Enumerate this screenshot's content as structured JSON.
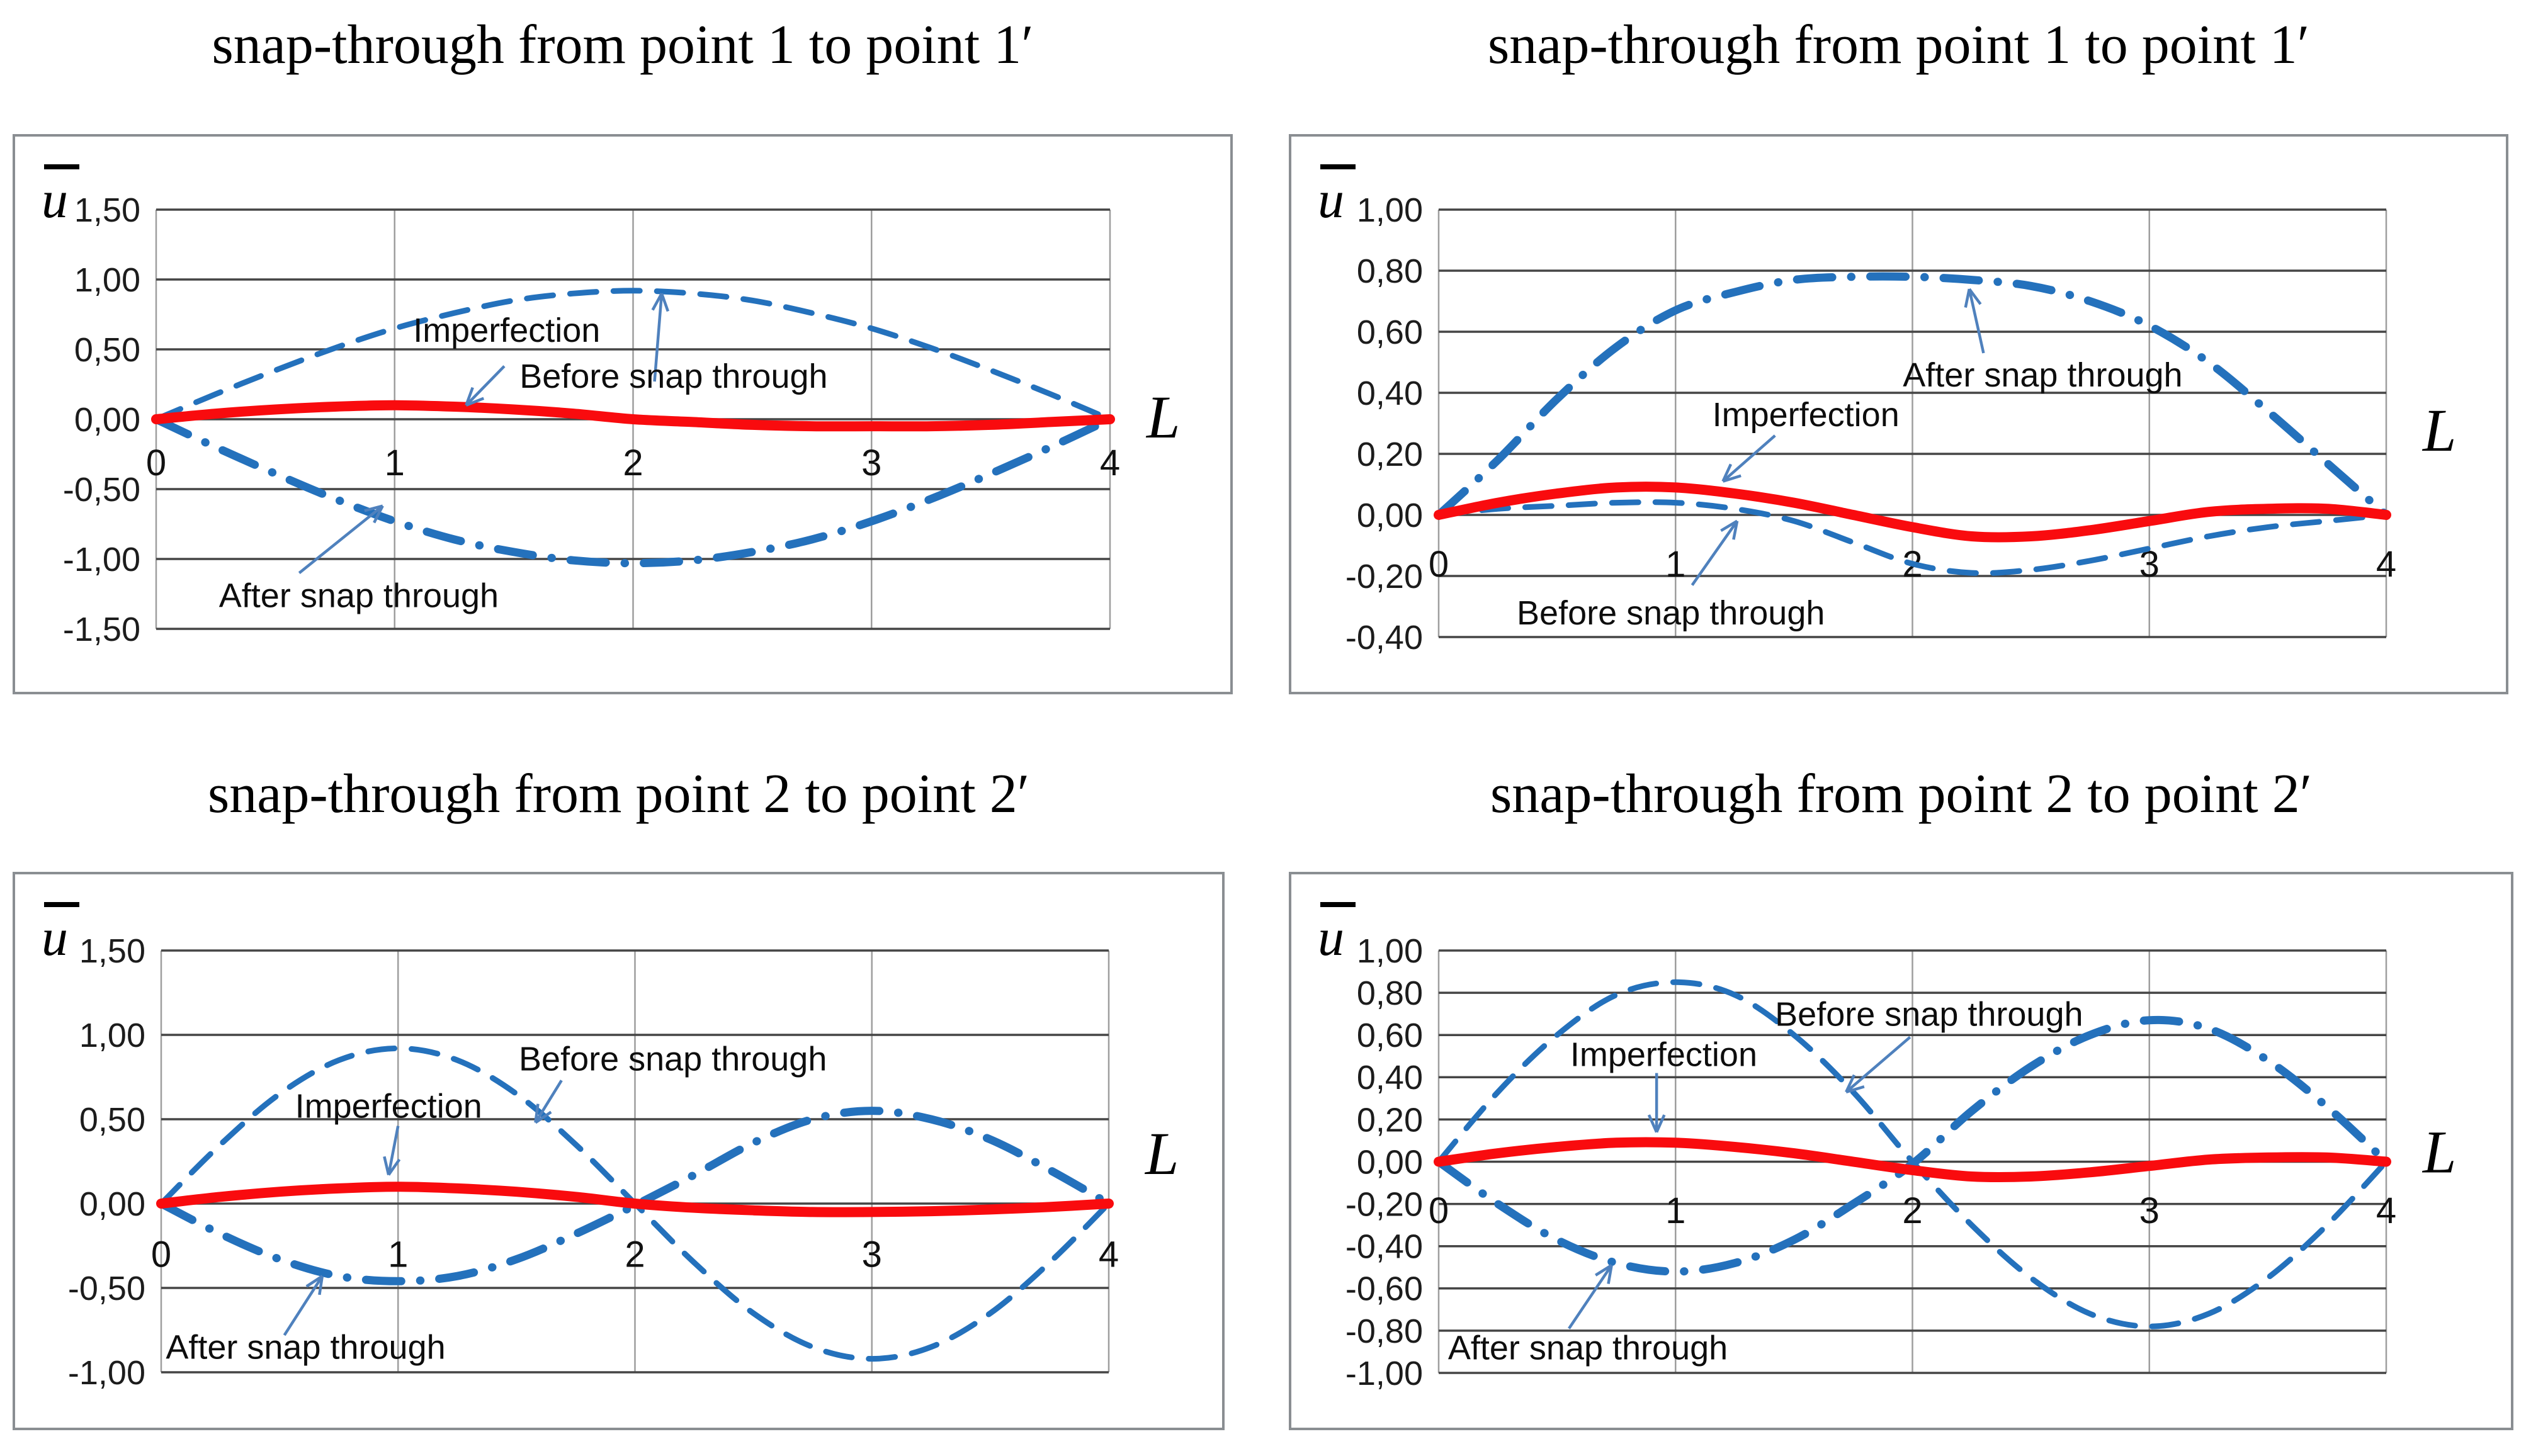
{
  "figure": {
    "background": "#ffffff",
    "curve_blue": "#2471BC",
    "curve_red": "#F90B0E",
    "arrow_blue": "#4F81BD",
    "grid_dark": "#454545",
    "grid_light": "#9e9e9e",
    "box_border": "#8a8e92"
  },
  "chart_data": [
    {
      "id": "c1",
      "type": "line",
      "title": "snap-through from point 1 to point 1′",
      "xlabel": "L",
      "ylabel": "u",
      "ylabel_overbar": true,
      "xlim": [
        0,
        4
      ],
      "ylim": [
        -1.5,
        1.5
      ],
      "grid": true,
      "legend_position": "none",
      "x_ticks": [
        {
          "label": "0",
          "v": 0
        },
        {
          "label": "1",
          "v": 1
        },
        {
          "label": "2",
          "v": 2
        },
        {
          "label": "3",
          "v": 3
        },
        {
          "label": "4",
          "v": 4
        }
      ],
      "y_ticks": [
        {
          "label": "1,50",
          "v": 1.5
        },
        {
          "label": "1,00",
          "v": 1.0
        },
        {
          "label": "0,50",
          "v": 0.5
        },
        {
          "label": "0,00",
          "v": 0.0
        },
        {
          "label": "-0,50",
          "v": -0.5
        },
        {
          "label": "-1,00",
          "v": -1.0
        },
        {
          "label": "-1,50",
          "v": -1.5
        }
      ],
      "x_tick_row_v": -0.31,
      "xlabel_v": 0.02,
      "x": [
        0,
        0.25,
        0.5,
        0.75,
        1,
        1.25,
        1.5,
        1.75,
        2,
        2.25,
        2.5,
        2.75,
        3,
        3.25,
        3.5,
        3.75,
        4
      ],
      "series": [
        {
          "name": "Before snap through",
          "style": "dashed",
          "color": "#2471BC",
          "values": [
            0,
            0.18,
            0.35,
            0.51,
            0.65,
            0.76,
            0.85,
            0.9,
            0.92,
            0.9,
            0.85,
            0.76,
            0.65,
            0.51,
            0.35,
            0.18,
            0
          ]
        },
        {
          "name": "After snap through",
          "style": "dashdot",
          "color": "#2471BC",
          "values": [
            0,
            -0.2,
            -0.39,
            -0.57,
            -0.73,
            -0.86,
            -0.95,
            -1.01,
            -1.03,
            -1.01,
            -0.95,
            -0.86,
            -0.73,
            -0.57,
            -0.39,
            -0.2,
            0
          ]
        },
        {
          "name": "Imperfection",
          "style": "solid",
          "color": "#F90B0E",
          "values": [
            0,
            0.04,
            0.07,
            0.09,
            0.1,
            0.09,
            0.07,
            0.04,
            0,
            -0.02,
            -0.04,
            -0.05,
            -0.05,
            -0.05,
            -0.04,
            -0.02,
            0
          ]
        }
      ],
      "annotations": [
        {
          "label": "Imperfection",
          "tx": 1.47,
          "ty": 0.64,
          "arrow": [
            1.46,
            0.38,
            1.3,
            0.1
          ]
        },
        {
          "label": "Before snap through",
          "tx": 2.17,
          "ty": 0.31,
          "arrow": [
            2.09,
            0.27,
            2.12,
            0.9
          ]
        },
        {
          "label": "After snap through",
          "tx": 0.85,
          "ty": -1.26,
          "arrow": [
            0.6,
            -1.1,
            0.95,
            -0.62
          ]
        }
      ]
    },
    {
      "id": "c2",
      "type": "line",
      "title": "snap-through from point 1 to point 1′",
      "xlabel": "L",
      "ylabel": "u",
      "ylabel_overbar": true,
      "xlim": [
        0,
        4
      ],
      "ylim": [
        -0.4,
        1.0
      ],
      "grid": true,
      "legend_position": "none",
      "x_ticks": [
        {
          "label": "0",
          "v": 0
        },
        {
          "label": "1",
          "v": 1
        },
        {
          "label": "2",
          "v": 2
        },
        {
          "label": "3",
          "v": 3
        },
        {
          "label": "4",
          "v": 4
        }
      ],
      "y_ticks": [
        {
          "label": "1,00",
          "v": 1.0
        },
        {
          "label": "0,80",
          "v": 0.8
        },
        {
          "label": "0,60",
          "v": 0.6
        },
        {
          "label": "0,40",
          "v": 0.4
        },
        {
          "label": "0,20",
          "v": 0.2
        },
        {
          "label": "0,00",
          "v": 0.0
        },
        {
          "label": "-0,20",
          "v": -0.2
        },
        {
          "label": "-0,40",
          "v": -0.4
        }
      ],
      "x_tick_row_v": -0.16,
      "xlabel_v": 0.28,
      "x": [
        0,
        0.25,
        0.5,
        0.75,
        1,
        1.25,
        1.5,
        1.75,
        2,
        2.25,
        2.5,
        2.75,
        3,
        3.25,
        3.5,
        3.75,
        4
      ],
      "series": [
        {
          "name": "After snap through",
          "style": "dashdot",
          "color": "#2471BC",
          "values": [
            0,
            0.18,
            0.38,
            0.55,
            0.67,
            0.73,
            0.77,
            0.78,
            0.78,
            0.77,
            0.75,
            0.7,
            0.62,
            0.5,
            0.34,
            0.17,
            0
          ]
        },
        {
          "name": "Before snap through",
          "style": "dashed",
          "color": "#2471BC",
          "values": [
            0,
            0.02,
            0.03,
            0.04,
            0.04,
            0.02,
            -0.02,
            -0.09,
            -0.16,
            -0.19,
            -0.18,
            -0.15,
            -0.11,
            -0.07,
            -0.04,
            -0.02,
            0
          ]
        },
        {
          "name": "Imperfection",
          "style": "solid",
          "color": "#F90B0E",
          "values": [
            0,
            0.04,
            0.07,
            0.09,
            0.09,
            0.07,
            0.04,
            0,
            -0.04,
            -0.07,
            -0.07,
            -0.05,
            -0.02,
            0.01,
            0.02,
            0.02,
            0
          ]
        }
      ],
      "annotations": [
        {
          "label": "After snap through",
          "tx": 2.55,
          "ty": 0.46,
          "arrow": [
            2.3,
            0.53,
            2.24,
            0.74
          ]
        },
        {
          "label": "Imperfection",
          "tx": 1.55,
          "ty": 0.33,
          "arrow": [
            1.42,
            0.26,
            1.2,
            0.11
          ]
        },
        {
          "label": "Before snap through",
          "tx": 0.98,
          "ty": -0.32,
          "arrow": [
            1.07,
            -0.23,
            1.26,
            -0.02
          ]
        }
      ]
    },
    {
      "id": "c3",
      "type": "line",
      "title": "snap-through from point 2 to point 2′",
      "xlabel": "L",
      "ylabel": "u",
      "ylabel_overbar": true,
      "xlim": [
        0,
        4
      ],
      "ylim": [
        -1.0,
        1.5
      ],
      "grid": true,
      "legend_position": "none",
      "x_ticks": [
        {
          "label": "0",
          "v": 0
        },
        {
          "label": "1",
          "v": 1
        },
        {
          "label": "2",
          "v": 2
        },
        {
          "label": "3",
          "v": 3
        },
        {
          "label": "4",
          "v": 4
        }
      ],
      "y_ticks": [
        {
          "label": "1,50",
          "v": 1.5
        },
        {
          "label": "1,00",
          "v": 1.0
        },
        {
          "label": "0,50",
          "v": 0.5
        },
        {
          "label": "0,00",
          "v": 0.0
        },
        {
          "label": "-0,50",
          "v": -0.5
        },
        {
          "label": "-1,00",
          "v": -1.0
        }
      ],
      "x_tick_row_v": -0.3,
      "xlabel_v": 0.3,
      "x": [
        0,
        0.25,
        0.5,
        0.75,
        1,
        1.25,
        1.5,
        1.75,
        2,
        2.25,
        2.5,
        2.75,
        3,
        3.25,
        3.5,
        3.75,
        4
      ],
      "series": [
        {
          "name": "Before snap through",
          "style": "dashed",
          "color": "#2471BC",
          "values": [
            0,
            0.35,
            0.65,
            0.85,
            0.92,
            0.85,
            0.65,
            0.35,
            0,
            -0.35,
            -0.65,
            -0.85,
            -0.92,
            -0.85,
            -0.65,
            -0.35,
            0
          ]
        },
        {
          "name": "After snap through",
          "style": "dashdot",
          "color": "#2471BC",
          "values": [
            0,
            -0.18,
            -0.33,
            -0.43,
            -0.46,
            -0.43,
            -0.33,
            -0.18,
            -0.01,
            0.17,
            0.36,
            0.5,
            0.55,
            0.5,
            0.38,
            0.2,
            0
          ]
        },
        {
          "name": "Imperfection",
          "style": "solid",
          "color": "#F90B0E",
          "values": [
            0,
            0.04,
            0.07,
            0.09,
            0.1,
            0.09,
            0.07,
            0.04,
            0,
            -0.025,
            -0.04,
            -0.05,
            -0.05,
            -0.045,
            -0.035,
            -0.02,
            0
          ]
        }
      ],
      "annotations": [
        {
          "label": "Before snap through",
          "tx": 2.16,
          "ty": 0.86,
          "arrow": [
            1.69,
            0.73,
            1.58,
            0.48
          ]
        },
        {
          "label": "Imperfection",
          "tx": 0.96,
          "ty": 0.58,
          "arrow": [
            1.0,
            0.46,
            0.96,
            0.17
          ]
        },
        {
          "label": "After snap through",
          "tx": 0.61,
          "ty": -0.85,
          "arrow": [
            0.52,
            -0.78,
            0.68,
            -0.43
          ]
        }
      ]
    },
    {
      "id": "c4",
      "type": "line",
      "title": "snap-through from point 2 to point 2′",
      "xlabel": "L",
      "ylabel": "u",
      "ylabel_overbar": true,
      "xlim": [
        0,
        4
      ],
      "ylim": [
        -1.0,
        1.0
      ],
      "grid": true,
      "legend_position": "none",
      "x_ticks": [
        {
          "label": "0",
          "v": 0
        },
        {
          "label": "1",
          "v": 1
        },
        {
          "label": "2",
          "v": 2
        },
        {
          "label": "3",
          "v": 3
        },
        {
          "label": "4",
          "v": 4
        }
      ],
      "y_ticks": [
        {
          "label": "1,00",
          "v": 1.0
        },
        {
          "label": "0,80",
          "v": 0.8
        },
        {
          "label": "0,60",
          "v": 0.6
        },
        {
          "label": "0,40",
          "v": 0.4
        },
        {
          "label": "0,20",
          "v": 0.2
        },
        {
          "label": "0,00",
          "v": 0.0
        },
        {
          "label": "-0,20",
          "v": -0.2
        },
        {
          "label": "-0,40",
          "v": -0.4
        },
        {
          "label": "-0,60",
          "v": -0.6
        },
        {
          "label": "-0,80",
          "v": -0.8
        },
        {
          "label": "-1,00",
          "v": -1.0
        }
      ],
      "x_tick_row_v": -0.23,
      "xlabel_v": 0.05,
      "x": [
        0,
        0.25,
        0.5,
        0.75,
        1,
        1.25,
        1.5,
        1.75,
        2,
        2.25,
        2.5,
        2.75,
        3,
        3.25,
        3.5,
        3.75,
        4
      ],
      "series": [
        {
          "name": "Before snap through",
          "style": "dashed",
          "color": "#2471BC",
          "values": [
            0,
            0.33,
            0.6,
            0.79,
            0.85,
            0.79,
            0.6,
            0.33,
            0,
            -0.3,
            -0.55,
            -0.72,
            -0.78,
            -0.72,
            -0.55,
            -0.3,
            0
          ]
        },
        {
          "name": "After snap through",
          "style": "dashdot",
          "color": "#2471BC",
          "values": [
            0,
            -0.2,
            -0.37,
            -0.48,
            -0.52,
            -0.48,
            -0.37,
            -0.2,
            -0.01,
            0.24,
            0.45,
            0.6,
            0.67,
            0.63,
            0.48,
            0.26,
            0
          ]
        },
        {
          "name": "Imperfection",
          "style": "solid",
          "color": "#F90B0E",
          "values": [
            0,
            0.04,
            0.07,
            0.09,
            0.09,
            0.07,
            0.04,
            0,
            -0.04,
            -0.07,
            -0.07,
            -0.05,
            -0.02,
            0.01,
            0.02,
            0.02,
            0
          ]
        }
      ],
      "annotations": [
        {
          "label": "Before snap through",
          "tx": 2.07,
          "ty": 0.7,
          "arrow": [
            1.99,
            0.59,
            1.72,
            0.33
          ]
        },
        {
          "label": "Imperfection",
          "tx": 0.95,
          "ty": 0.51,
          "arrow": [
            0.92,
            0.42,
            0.92,
            0.14
          ]
        },
        {
          "label": "After snap through",
          "tx": 0.63,
          "ty": -0.88,
          "arrow": [
            0.55,
            -0.79,
            0.73,
            -0.49
          ]
        }
      ]
    }
  ]
}
